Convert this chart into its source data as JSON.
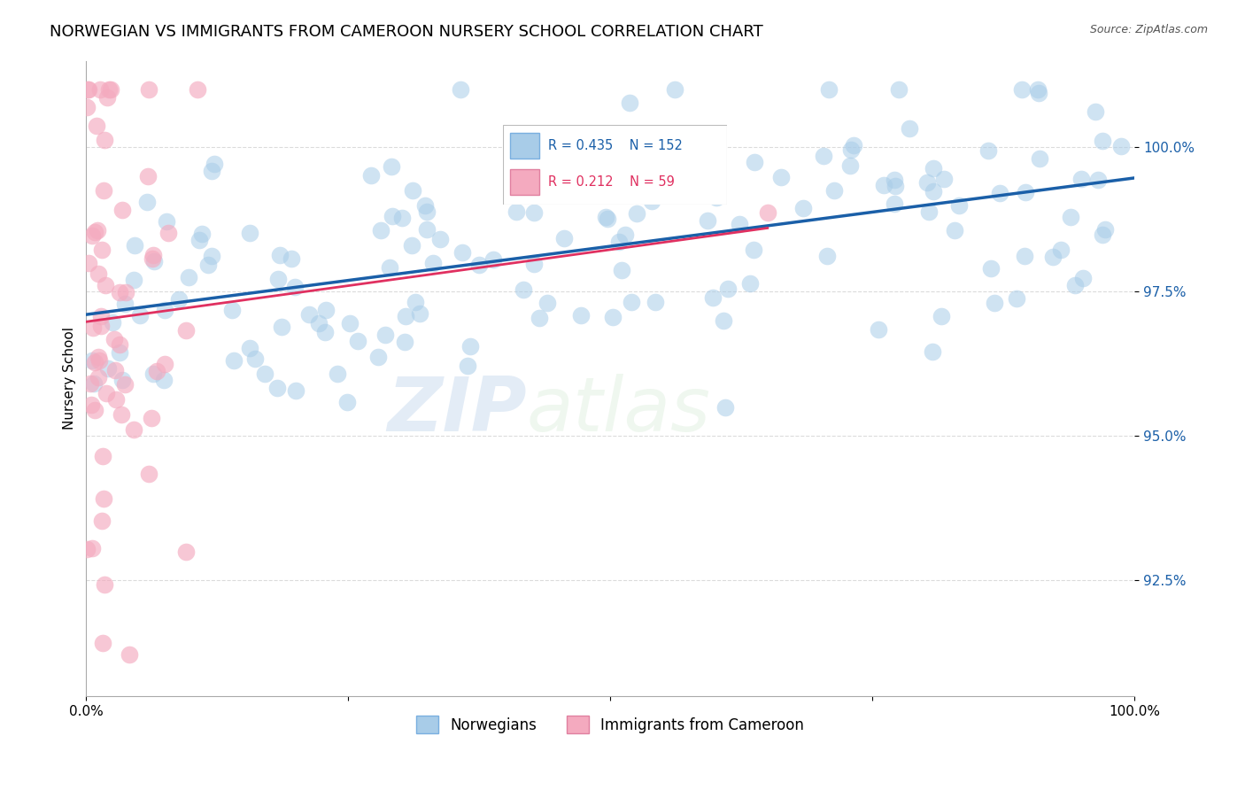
{
  "title": "NORWEGIAN VS IMMIGRANTS FROM CAMEROON NURSERY SCHOOL CORRELATION CHART",
  "source": "Source: ZipAtlas.com",
  "ylabel": "Nursery School",
  "x_range": [
    0,
    100
  ],
  "y_range": [
    90.5,
    101.5
  ],
  "blue_R": 0.435,
  "blue_N": 152,
  "pink_R": 0.212,
  "pink_N": 59,
  "legend_label_blue": "Norwegians",
  "legend_label_pink": "Immigrants from Cameroon",
  "blue_color": "#a8cce8",
  "pink_color": "#f4aabf",
  "blue_line_color": "#1a5fa8",
  "pink_line_color": "#e03060",
  "watermark_zip": "ZIP",
  "watermark_atlas": "atlas",
  "title_fontsize": 13,
  "source_fontsize": 9,
  "yticks": [
    92.5,
    95.0,
    97.5,
    100.0
  ],
  "ytick_labels": [
    "92.5%",
    "95.0%",
    "97.5%",
    "100.0%"
  ]
}
